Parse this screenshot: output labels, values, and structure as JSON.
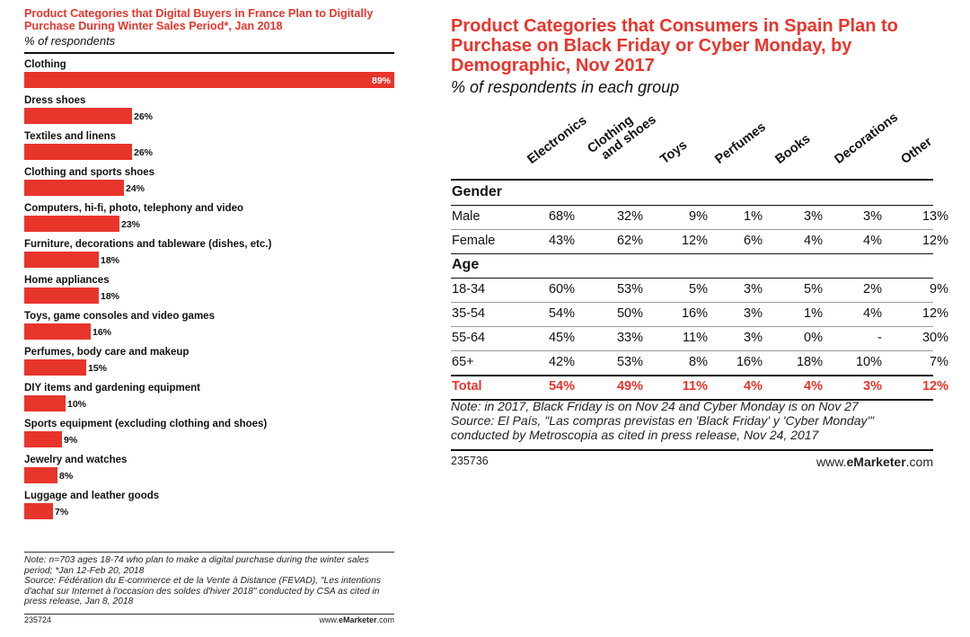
{
  "left_chart": {
    "title": "Product Categories that Digital Buyers in France Plan to Digitally Purchase During Winter Sales Period*, Jan 2018",
    "subtitle": "% of respondents",
    "note": "Note: n=703 ages 18-74 who plan to make a digital purchase during the winter sales period; *Jan 12-Feb 20, 2018\nSource: Fédération du E-commerce et de la Vente à Distance (FEVAD), \"Les intentions d'achat sur Internet à l'occasion des soldes d'hiver 2018\" conducted by CSA as cited in press release, Jan 8, 2018",
    "id": "235724",
    "brand_prefix": "www.",
    "brand_name": "eMarketer",
    "brand_suffix": ".com"
  },
  "right_chart": {
    "title": "Product Categories that Consumers in Spain Plan to Purchase on Black Friday or Cyber Monday, by Demographic, Nov 2017",
    "subtitle": "% of respondents in each group",
    "note": "Note: in 2017, Black Friday is on Nov 24 and Cyber Monday is on Nov 27\nSource: El País, \"Las compras previstas en 'Black Friday' y 'Cyber Monday'\" conducted by Metroscopia as cited in press release, Nov 24, 2017",
    "id": "235736",
    "brand_prefix": "www.",
    "brand_name": "eMarketer",
    "brand_suffix": ".com"
  },
  "chart_data": [
    {
      "type": "bar",
      "orientation": "horizontal",
      "title": "Product Categories that Digital Buyers in France Plan to Digitally Purchase During Winter Sales Period*, Jan 2018",
      "categories": [
        "Clothing",
        "Dress shoes",
        "Textiles and linens",
        "Clothing and sports shoes",
        "Computers, hi-fi, photo, telephony and video",
        "Furniture, decorations and tableware (dishes, etc.)",
        "Home appliances",
        "Toys, game consoles and video games",
        "Perfumes, body care and makeup",
        "DIY items and gardening equipment",
        "Sports equipment (excluding clothing and shoes)",
        "Jewelry and watches",
        "Luggage and leather goods"
      ],
      "values": [
        89,
        26,
        26,
        24,
        23,
        18,
        18,
        16,
        15,
        10,
        9,
        8,
        7
      ],
      "value_suffix": "%",
      "bar_color": "#e8352c",
      "xlim": [
        0,
        89
      ]
    },
    {
      "type": "table",
      "title": "Product Categories that Consumers in Spain Plan to Purchase on Black Friday or Cyber Monday, by Demographic, Nov 2017",
      "columns": [
        "Electronics",
        "Clothing and shoes",
        "Toys",
        "Perfumes",
        "Books",
        "Decorations",
        "Other"
      ],
      "groups": [
        {
          "label": "Gender",
          "rows": [
            {
              "label": "Male",
              "values": [
                "68%",
                "32%",
                "9%",
                "1%",
                "3%",
                "3%",
                "13%"
              ]
            },
            {
              "label": "Female",
              "values": [
                "43%",
                "62%",
                "12%",
                "6%",
                "4%",
                "4%",
                "12%"
              ]
            }
          ]
        },
        {
          "label": "Age",
          "rows": [
            {
              "label": "18-34",
              "values": [
                "60%",
                "53%",
                "5%",
                "3%",
                "5%",
                "2%",
                "9%"
              ]
            },
            {
              "label": "35-54",
              "values": [
                "54%",
                "50%",
                "16%",
                "3%",
                "1%",
                "4%",
                "12%"
              ]
            },
            {
              "label": "55-64",
              "values": [
                "45%",
                "33%",
                "11%",
                "3%",
                "0%",
                "-",
                "30%"
              ]
            },
            {
              "label": "65+",
              "values": [
                "42%",
                "53%",
                "8%",
                "16%",
                "18%",
                "10%",
                "7%"
              ]
            }
          ]
        }
      ],
      "total": {
        "label": "Total",
        "values": [
          "54%",
          "49%",
          "11%",
          "4%",
          "4%",
          "3%",
          "12%"
        ]
      },
      "highlight_color": "#e8352c"
    }
  ]
}
